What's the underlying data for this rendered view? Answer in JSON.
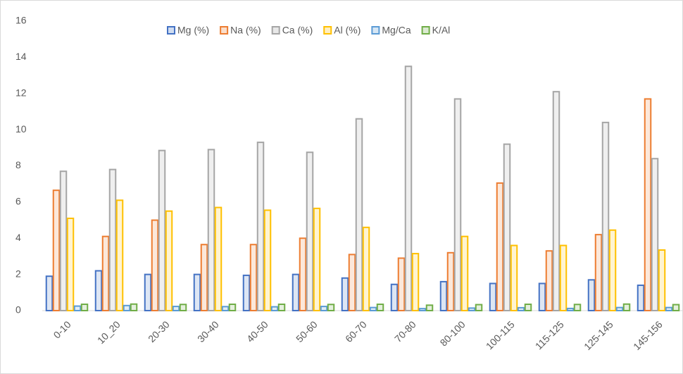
{
  "chart_data": {
    "type": "bar",
    "categories": [
      "0-10",
      "10_20",
      "20-30",
      "30-40",
      "40-50",
      "50-60",
      "60-70",
      "70-80",
      "80-100",
      "100-115",
      "115-125",
      "125-145",
      "145-156"
    ],
    "series": [
      {
        "name": "Mg (%)",
        "color": "#4472c4",
        "values": [
          1.9,
          2.2,
          2.0,
          2.0,
          1.95,
          2.0,
          1.8,
          1.45,
          1.6,
          1.5,
          1.5,
          1.7,
          1.4
        ]
      },
      {
        "name": "Na (%)",
        "color": "#ed7d31",
        "values": [
          6.65,
          4.1,
          5.0,
          3.65,
          3.65,
          4.0,
          3.1,
          2.9,
          3.2,
          7.05,
          3.3,
          4.2,
          11.7
        ]
      },
      {
        "name": "Ca (%)",
        "color": "#a5a5a5",
        "values": [
          7.7,
          7.8,
          8.85,
          8.9,
          9.3,
          8.75,
          10.6,
          13.5,
          11.7,
          9.2,
          12.1,
          10.4,
          8.4
        ]
      },
      {
        "name": "Al (%)",
        "color": "#ffc000",
        "values": [
          5.1,
          6.1,
          5.5,
          5.7,
          5.55,
          5.65,
          4.6,
          3.15,
          4.1,
          3.6,
          3.6,
          4.45,
          3.35
        ]
      },
      {
        "name": "Mg/Ca",
        "color": "#5b9bd5",
        "values": [
          0.25,
          0.28,
          0.23,
          0.22,
          0.21,
          0.23,
          0.17,
          0.11,
          0.14,
          0.16,
          0.12,
          0.17,
          0.17
        ]
      },
      {
        "name": "K/Al",
        "color": "#70ad47",
        "values": [
          0.35,
          0.36,
          0.34,
          0.35,
          0.35,
          0.34,
          0.35,
          0.3,
          0.33,
          0.35,
          0.34,
          0.36,
          0.33
        ]
      }
    ],
    "ylim": [
      0,
      16
    ],
    "yticks": [
      0,
      2,
      4,
      6,
      8,
      10,
      12,
      14,
      16
    ],
    "legend": "top"
  }
}
